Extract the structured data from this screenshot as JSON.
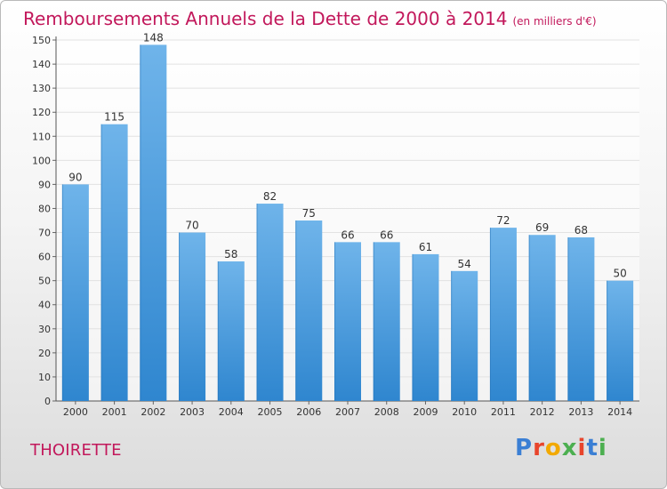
{
  "title": {
    "main": "Remboursements Annuels de la Dette de 2000 à 2014",
    "unit": "(en milliers d'€)"
  },
  "footer": {
    "place": "THOIRETTE",
    "logo": "Proxiti"
  },
  "colors": {
    "bar": "#2f86cf",
    "bar_light": "#6fb4ea",
    "text_accent": "#c2185b"
  },
  "chart_data": {
    "type": "bar",
    "title": "Remboursements Annuels de la Dette de 2000 à 2014",
    "xlabel": "",
    "ylabel": "",
    "categories": [
      "2000",
      "2001",
      "2002",
      "2003",
      "2004",
      "2005",
      "2006",
      "2007",
      "2008",
      "2009",
      "2010",
      "2011",
      "2012",
      "2013",
      "2014"
    ],
    "values": [
      90,
      115,
      148,
      70,
      58,
      82,
      75,
      66,
      66,
      61,
      54,
      72,
      69,
      68,
      50
    ],
    "ylim": [
      0,
      150
    ],
    "yticks": [
      0,
      10,
      20,
      30,
      40,
      50,
      60,
      70,
      80,
      90,
      100,
      110,
      120,
      130,
      140,
      150
    ],
    "grid": true,
    "data_labels": true
  }
}
